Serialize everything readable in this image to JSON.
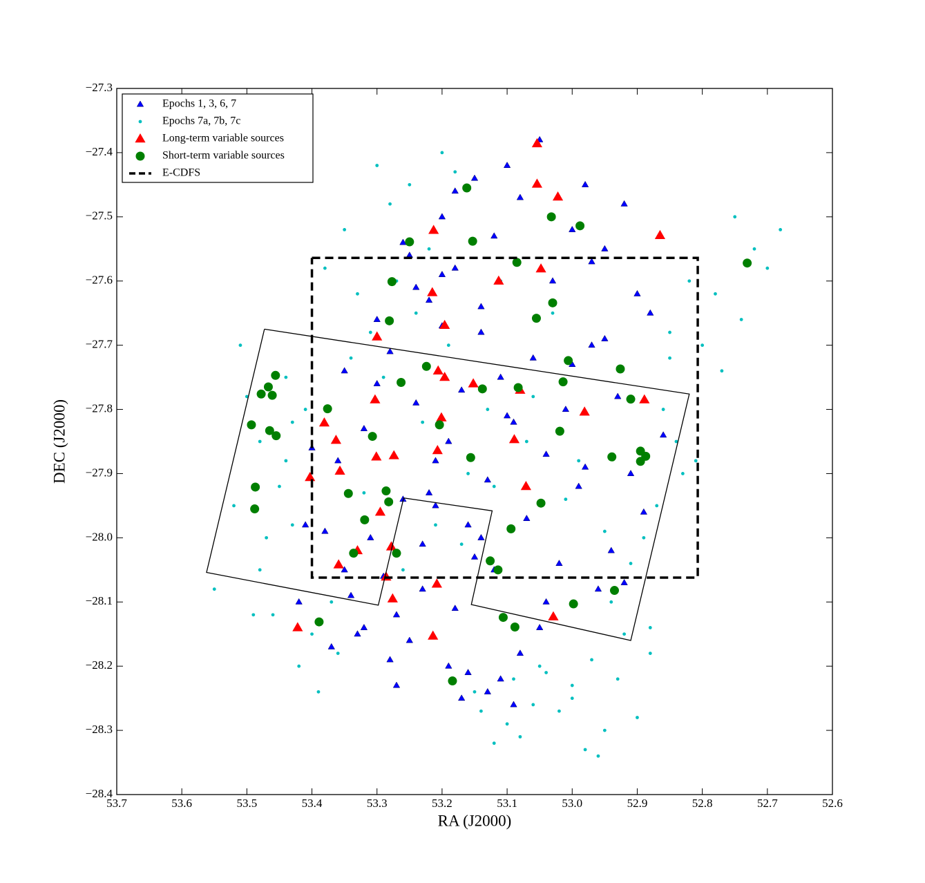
{
  "chart_data": {
    "type": "scatter",
    "xlabel": "RA (J2000)",
    "ylabel": "DEC (J2000)",
    "xlim": [
      53.7,
      52.6
    ],
    "ylim": [
      -27.3,
      -28.4
    ],
    "xticks": [
      53.7,
      53.6,
      53.5,
      53.4,
      53.3,
      53.2,
      53.1,
      {
        "value": 53.0,
        "label": "53.0"
      },
      52.9,
      52.8,
      52.7,
      52.6
    ],
    "yticks": [
      {
        "value": -27.3,
        "label": "−27.3"
      },
      {
        "value": -27.4,
        "label": "−27.4"
      },
      {
        "value": -27.5,
        "label": "−27.5"
      },
      {
        "value": -27.6,
        "label": "−27.6"
      },
      {
        "value": -27.7,
        "label": "−27.7"
      },
      {
        "value": -27.8,
        "label": "−27.8"
      },
      {
        "value": -27.9,
        "label": "−27.9"
      },
      {
        "value": -28.0,
        "label": "−28.0"
      },
      {
        "value": -28.1,
        "label": "−28.1"
      },
      {
        "value": -28.2,
        "label": "−28.2"
      },
      {
        "value": -28.3,
        "label": "−28.3"
      },
      {
        "value": -28.4,
        "label": "−28.4"
      }
    ],
    "legend": "upper left",
    "series": [
      {
        "name": "Epochs 1, 3, 6, 7",
        "color": "#0000ff",
        "marker": "triangle",
        "x": [
          53.05,
          53.1,
          52.98,
          52.92,
          53.15,
          53.2,
          53.0,
          52.95,
          53.08,
          53.12,
          53.25,
          53.18,
          53.03,
          52.9,
          52.88,
          53.22,
          53.3,
          53.14,
          52.97,
          53.06,
          53.35,
          53.28,
          53.11,
          52.93,
          53.01,
          53.17,
          53.24,
          52.86,
          53.09,
          53.32,
          53.4,
          53.36,
          53.19,
          53.04,
          52.91,
          52.99,
          53.13,
          53.26,
          53.21,
          53.07,
          53.38,
          53.31,
          53.16,
          52.94,
          52.89,
          53.02,
          53.23,
          53.29,
          53.12,
          52.96,
          53.42,
          53.34,
          53.27,
          53.18,
          53.05,
          52.92,
          52.98,
          53.1,
          53.14,
          53.2,
          53.39,
          53.33,
          53.25,
          53.08,
          53.0,
          52.95,
          53.15,
          53.22,
          53.3,
          53.37,
          53.41,
          53.35,
          53.28,
          53.19,
          53.11,
          53.04,
          52.97,
          53.16,
          53.24,
          53.13,
          53.32,
          53.27,
          53.21,
          53.17,
          53.09,
          53.26,
          53.23,
          53.18,
          53.14,
          53.2
        ],
        "y": [
          -27.38,
          -27.42,
          -27.45,
          -27.48,
          -27.44,
          -27.5,
          -27.52,
          -27.55,
          -27.47,
          -27.53,
          -27.56,
          -27.58,
          -27.6,
          -27.62,
          -27.65,
          -27.63,
          -27.66,
          -27.68,
          -27.7,
          -27.72,
          -27.74,
          -27.71,
          -27.75,
          -27.78,
          -27.8,
          -27.77,
          -27.79,
          -27.84,
          -27.82,
          -27.83,
          -27.86,
          -27.88,
          -27.85,
          -27.87,
          -27.9,
          -27.92,
          -27.91,
          -27.94,
          -27.95,
          -27.97,
          -27.99,
          -28.0,
          -27.98,
          -28.02,
          -27.96,
          -28.04,
          -28.01,
          -28.06,
          -28.05,
          -28.08,
          -28.1,
          -28.09,
          -28.12,
          -28.11,
          -28.14,
          -28.07,
          -27.89,
          -27.81,
          -27.64,
          -27.59,
          -28.13,
          -28.15,
          -28.16,
          -28.18,
          -27.73,
          -27.69,
          -28.03,
          -27.93,
          -27.76,
          -28.17,
          -27.98,
          -28.05,
          -28.19,
          -28.2,
          -28.22,
          -28.1,
          -27.57,
          -28.21,
          -27.61,
          -28.24,
          -28.14,
          -28.23,
          -27.88,
          -28.25,
          -28.26,
          -27.54,
          -28.08,
          -27.46,
          -28.0,
          -27.67
        ]
      },
      {
        "name": "Epochs 7a, 7b, 7c",
        "color": "#00bfbf",
        "marker": "dot",
        "x": [
          53.5,
          53.48,
          53.45,
          53.52,
          53.47,
          53.44,
          53.55,
          53.49,
          53.43,
          53.51,
          52.75,
          52.72,
          52.7,
          52.68,
          52.78,
          52.74,
          52.8,
          52.77,
          52.82,
          52.85,
          53.3,
          53.25,
          53.2,
          53.35,
          53.28,
          53.22,
          53.18,
          53.38,
          53.33,
          53.27,
          53.0,
          52.95,
          52.9,
          52.98,
          53.05,
          52.93,
          52.88,
          53.02,
          52.96,
          53.08,
          53.1,
          53.15,
          53.12,
          53.06,
          53.0,
          52.97,
          53.04,
          52.92,
          53.14,
          53.09,
          53.4,
          53.36,
          53.46,
          53.42,
          53.39,
          53.48,
          53.44,
          53.37,
          53.41,
          53.43,
          52.86,
          52.84,
          52.83,
          52.87,
          52.89,
          52.81,
          52.91,
          52.85,
          52.94,
          52.88,
          53.24,
          53.19,
          53.13,
          53.29,
          53.16,
          53.21,
          53.26,
          53.11,
          53.07,
          53.17,
          53.31,
          53.23,
          53.01,
          52.99,
          53.34,
          53.32,
          53.03,
          53.06,
          53.12,
          52.95
        ],
        "y": [
          -27.78,
          -27.85,
          -27.92,
          -27.95,
          -28.0,
          -27.88,
          -28.08,
          -28.12,
          -27.82,
          -27.7,
          -27.5,
          -27.55,
          -27.58,
          -27.52,
          -27.62,
          -27.66,
          -27.7,
          -27.74,
          -27.6,
          -27.68,
          -27.42,
          -27.45,
          -27.4,
          -27.52,
          -27.48,
          -27.55,
          -27.43,
          -27.58,
          -27.62,
          -27.6,
          -28.25,
          -28.3,
          -28.28,
          -28.33,
          -28.2,
          -28.22,
          -28.18,
          -28.27,
          -28.34,
          -28.31,
          -28.29,
          -28.24,
          -28.32,
          -28.26,
          -28.23,
          -28.19,
          -28.21,
          -28.15,
          -28.27,
          -28.22,
          -28.15,
          -28.18,
          -28.12,
          -28.2,
          -28.24,
          -28.05,
          -27.75,
          -28.1,
          -27.8,
          -27.98,
          -27.8,
          -27.85,
          -27.9,
          -27.95,
          -28.0,
          -27.88,
          -28.04,
          -27.72,
          -28.1,
          -28.14,
          -27.65,
          -27.7,
          -27.8,
          -27.75,
          -27.9,
          -27.98,
          -28.05,
          -27.6,
          -27.85,
          -28.01,
          -27.68,
          -27.82,
          -27.94,
          -27.88,
          -27.72,
          -27.93,
          -27.65,
          -27.78,
          -27.92,
          -27.99
        ]
      },
      {
        "name": "Long-term variable sources",
        "color": "#ff0000",
        "marker": "triangle",
        "x": [
          53.054,
          53.054,
          53.022,
          53.213,
          52.865,
          53.048,
          53.113,
          53.215,
          53.196,
          53.3,
          53.206,
          53.196,
          53.152,
          53.08,
          53.303,
          52.889,
          52.981,
          53.201,
          53.381,
          53.363,
          53.089,
          53.207,
          53.301,
          53.274,
          53.357,
          53.403,
          53.071,
          53.295,
          53.278,
          53.33,
          53.359,
          53.286,
          53.208,
          53.276,
          53.029,
          53.214,
          53.422
        ],
        "y": [
          -27.386,
          -27.449,
          -27.469,
          -27.521,
          -27.529,
          -27.581,
          -27.6,
          -27.618,
          -27.669,
          -27.687,
          -27.74,
          -27.75,
          -27.76,
          -27.77,
          -27.785,
          -27.785,
          -27.804,
          -27.813,
          -27.821,
          -27.848,
          -27.847,
          -27.864,
          -27.874,
          -27.872,
          -27.896,
          -27.906,
          -27.92,
          -27.96,
          -28.014,
          -28.02,
          -28.042,
          -28.061,
          -28.072,
          -28.095,
          -28.123,
          -28.153,
          -28.14
        ]
      },
      {
        "name": "Short-term variable sources",
        "color": "#007f00",
        "marker": "circle",
        "x": [
          53.162,
          53.032,
          52.988,
          53.25,
          53.153,
          53.085,
          52.731,
          53.277,
          53.03,
          53.055,
          53.281,
          53.006,
          53.224,
          52.926,
          53.456,
          53.263,
          53.014,
          53.138,
          53.083,
          53.467,
          53.478,
          53.461,
          52.91,
          53.376,
          53.493,
          53.204,
          53.465,
          53.019,
          53.455,
          53.307,
          52.895,
          52.887,
          52.939,
          53.156,
          52.895,
          53.487,
          53.344,
          53.286,
          53.282,
          53.048,
          53.488,
          53.319,
          53.094,
          53.336,
          53.27,
          53.126,
          53.114,
          52.935,
          52.998,
          53.389,
          53.106,
          53.088,
          53.184
        ],
        "y": [
          -27.455,
          -27.5,
          -27.514,
          -27.539,
          -27.538,
          -27.571,
          -27.572,
          -27.601,
          -27.634,
          -27.658,
          -27.662,
          -27.724,
          -27.733,
          -27.737,
          -27.747,
          -27.758,
          -27.757,
          -27.768,
          -27.766,
          -27.765,
          -27.776,
          -27.778,
          -27.784,
          -27.799,
          -27.824,
          -27.824,
          -27.833,
          -27.834,
          -27.841,
          -27.842,
          -27.865,
          -27.873,
          -27.874,
          -27.875,
          -27.881,
          -27.921,
          -27.931,
          -27.927,
          -27.944,
          -27.946,
          -27.955,
          -27.972,
          -27.986,
          -28.024,
          -28.024,
          -28.036,
          -28.05,
          -28.082,
          -28.103,
          -28.131,
          -28.124,
          -28.139,
          -28.223
        ]
      },
      {
        "name": "E-CDFS",
        "color": "#000000",
        "marker": "none",
        "linestyle": "dashed",
        "x": [
          53.4,
          52.807,
          52.807,
          53.4,
          53.4
        ],
        "y": [
          -27.564,
          -27.564,
          -28.062,
          -28.062,
          -27.564
        ]
      }
    ],
    "footprint": {
      "color": "#000000",
      "x": [
        53.473,
        52.82,
        52.91,
        53.155,
        53.123,
        53.259,
        53.298,
        53.562,
        53.473
      ],
      "y": [
        -27.675,
        -27.776,
        -28.16,
        -28.104,
        -27.958,
        -27.938,
        -28.105,
        -28.054,
        -27.675
      ]
    }
  }
}
